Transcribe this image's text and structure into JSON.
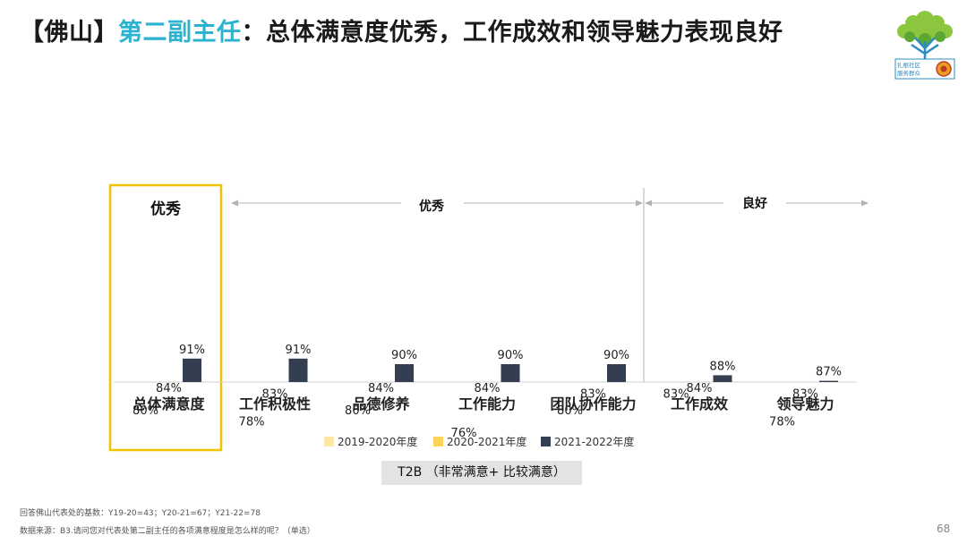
{
  "slide": {
    "title_bracket": "【佛山】",
    "title_role": "第二副主任",
    "title_rest": "：总体满意度优秀，工作成效和领导魅力表现良好",
    "logo_text_1": "扎根社区",
    "logo_text_2": "服务群众",
    "t2b_label": "T2B （非常满意+ 比较满意）",
    "footnote_base": "回答佛山代表处的基数：Y19-20=43；Y20-21=67；Y21-22=78",
    "footnote_source": "数据来源：B3.请问您对代表处第二副主任的各项满意程度是怎么样的呢？（单选）",
    "page_number": "68"
  },
  "colors": {
    "role_accent": "#2bb3cf",
    "highlight_box": "#f2c200",
    "series_2019": "#fde6a6",
    "series_2020": "#fdd45a",
    "series_2021": "#333e50"
  },
  "chart_data": {
    "type": "bar",
    "categories": [
      "总体满意度",
      "工作积极性",
      "品德修养",
      "工作能力",
      "团队协作能力",
      "工作成效",
      "领导魅力"
    ],
    "series": [
      {
        "name": "2019-2020年度",
        "values": [
          80,
          78,
          80,
          76,
          80,
          83,
          78
        ]
      },
      {
        "name": "2020-2021年度",
        "values": [
          84,
          83,
          84,
          84,
          83,
          84,
          83
        ]
      },
      {
        "name": "2021-2022年度",
        "values": [
          91,
          91,
          90,
          90,
          90,
          88,
          87
        ]
      }
    ],
    "value_suffix": "%",
    "ylim": [
      0,
      100
    ],
    "legend_position": "bottom",
    "group_labels": {
      "highlight": "优秀",
      "left_section": "优秀",
      "right_section": "良好"
    }
  }
}
